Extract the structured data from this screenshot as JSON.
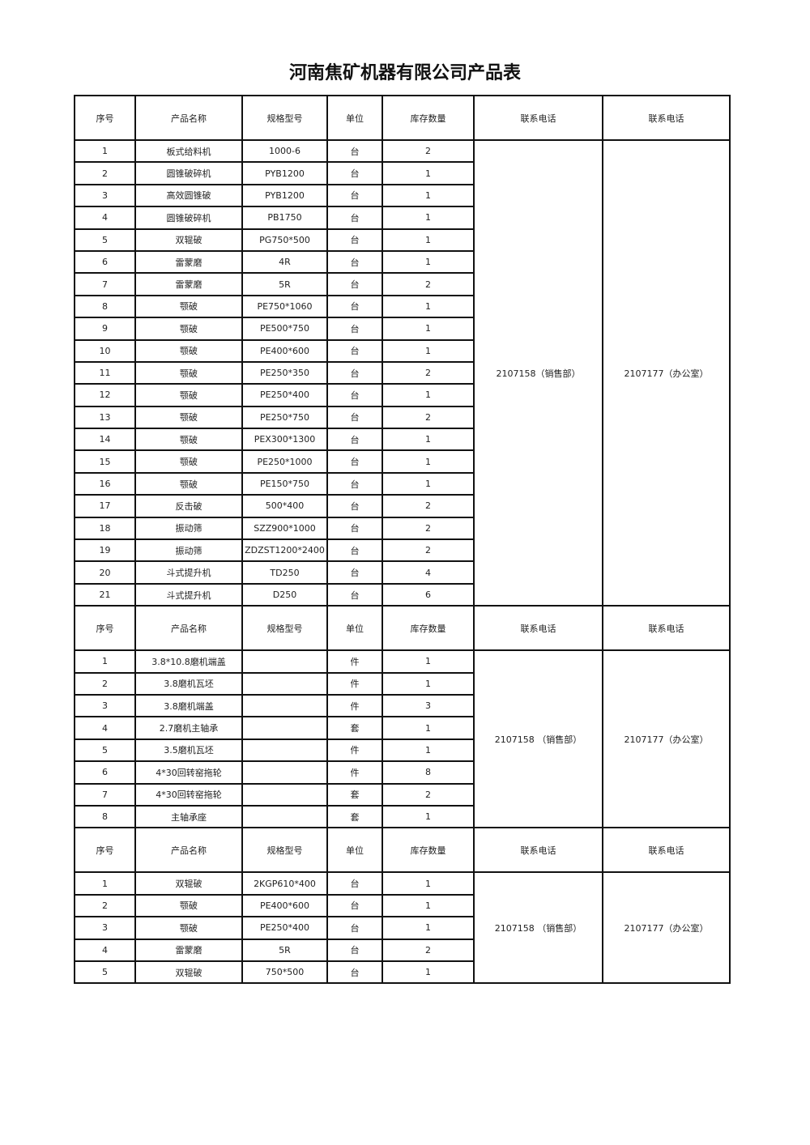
{
  "title": "河南焦矿机器有限公司产品表",
  "headers": [
    "序号",
    "产品名称",
    "规格型号",
    "单位",
    "库存数量",
    "联系电话",
    "联系电话"
  ],
  "sections": [
    {
      "phone_sales": "2107158（销售部）",
      "phone_office": "2107177（办公室）",
      "rows": [
        [
          "1",
          "板式给料机",
          "1000-6",
          "台",
          "2"
        ],
        [
          "2",
          "圆锥破碎机",
          "PYB1200",
          "台",
          "1"
        ],
        [
          "3",
          "高效圆锥破",
          "PYB1200",
          "台",
          "1"
        ],
        [
          "4",
          "圆锥破碎机",
          "PB1750",
          "台",
          "1"
        ],
        [
          "5",
          "双辊破",
          "PG750*500",
          "台",
          "1"
        ],
        [
          "6",
          "雷蒙磨",
          "4R",
          "台",
          "1"
        ],
        [
          "7",
          "雷蒙磨",
          "5R",
          "台",
          "2"
        ],
        [
          "8",
          "颚破",
          "PE750*1060",
          "台",
          "1"
        ],
        [
          "9",
          "颚破",
          "PE500*750",
          "台",
          "1"
        ],
        [
          "10",
          "颚破",
          "PE400*600",
          "台",
          "1"
        ],
        [
          "11",
          "颚破",
          "PE250*350",
          "台",
          "2"
        ],
        [
          "12",
          "颚破",
          "PE250*400",
          "台",
          "1"
        ],
        [
          "13",
          "颚破",
          "PE250*750",
          "台",
          "2"
        ],
        [
          "14",
          "颚破",
          "PEX300*1300",
          "台",
          "1"
        ],
        [
          "15",
          "颚破",
          "PE250*1000",
          "台",
          "1"
        ],
        [
          "16",
          "颚破",
          "PE150*750",
          "台",
          "1"
        ],
        [
          "17",
          "反击破",
          "500*400",
          "台",
          "2"
        ],
        [
          "18",
          "振动筛",
          "SZZ900*1000",
          "台",
          "2"
        ],
        [
          "19",
          "振动筛",
          "ZDZST1200*2400",
          "台",
          "2"
        ],
        [
          "20",
          "斗式提升机",
          "TD250",
          "台",
          "4"
        ],
        [
          "21",
          "斗式提升机",
          "D250",
          "台",
          "6"
        ]
      ]
    },
    {
      "phone_sales": "2107158 （销售部）",
      "phone_office": "2107177（办公室）",
      "rows": [
        [
          "1",
          "3.8*10.8磨机端盖",
          "",
          "件",
          "1"
        ],
        [
          "2",
          "3.8磨机瓦坯",
          "",
          "件",
          "1"
        ],
        [
          "3",
          "3.8磨机端盖",
          "",
          "件",
          "3"
        ],
        [
          "4",
          "2.7磨机主轴承",
          "",
          "套",
          "1"
        ],
        [
          "5",
          "3.5磨机瓦坯",
          "",
          "件",
          "1"
        ],
        [
          "6",
          "4*30回转窑拖轮",
          "",
          "件",
          "8"
        ],
        [
          "7",
          "4*30回转窑拖轮",
          "",
          "套",
          "2"
        ],
        [
          "8",
          "主轴承座",
          "",
          "套",
          "1"
        ]
      ]
    },
    {
      "phone_sales": "2107158 （销售部）",
      "phone_office": "2107177（办公室）",
      "rows": [
        [
          "1",
          "双辊破",
          "2KGP610*400",
          "台",
          "1"
        ],
        [
          "2",
          "颚破",
          "PE400*600",
          "台",
          "1"
        ],
        [
          "3",
          "颚破",
          "PE250*400",
          "台",
          "1"
        ],
        [
          "4",
          "雷蒙磨",
          "5R",
          "台",
          "2"
        ],
        [
          "5",
          "双辊破",
          "750*500",
          "台",
          "1"
        ]
      ]
    }
  ]
}
